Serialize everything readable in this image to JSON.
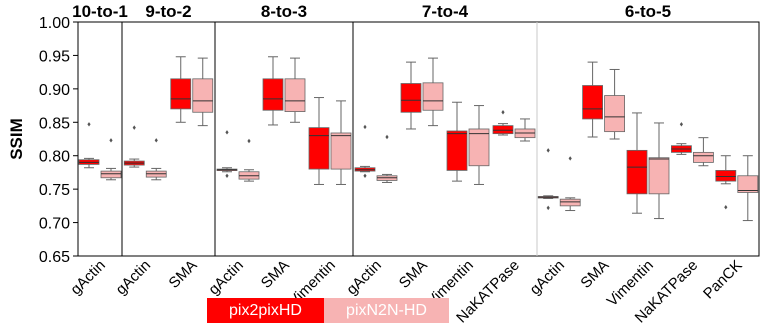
{
  "chart_data": {
    "type": "box",
    "ylabel": "SSIM",
    "ylim": [
      0.65,
      1.0
    ],
    "yticks": [
      "1.00",
      "0.95",
      "0.90",
      "0.85",
      "0.80",
      "0.75",
      "0.70",
      "0.65"
    ],
    "grid": false,
    "legend_position": "bottom-center",
    "colors": {
      "pix2pixHD": "#ff0000",
      "pixN2N-HD": "#f7b3b3"
    },
    "legend": [
      {
        "name": "pix2pixHD",
        "color": "#ff0000"
      },
      {
        "name": "pixN2N-HD",
        "color": "#f7b3b3"
      }
    ],
    "panels": [
      {
        "title": "10-to-1",
        "categories": [
          "gActin"
        ],
        "boxes": [
          {
            "category": "gActin",
            "series": "pix2pixHD",
            "min": 0.782,
            "q1": 0.787,
            "median": 0.79,
            "q3": 0.794,
            "max": 0.796,
            "outliers": [
              0.847
            ]
          },
          {
            "category": "gActin",
            "series": "pixN2N-HD",
            "min": 0.764,
            "q1": 0.767,
            "median": 0.773,
            "q3": 0.777,
            "max": 0.781,
            "outliers": [
              0.823
            ]
          }
        ]
      },
      {
        "title": "9-to-2",
        "categories": [
          "gActin",
          "SMA"
        ],
        "boxes": [
          {
            "category": "gActin",
            "series": "pix2pixHD",
            "min": 0.783,
            "q1": 0.786,
            "median": 0.789,
            "q3": 0.792,
            "max": 0.795,
            "outliers": [
              0.842
            ]
          },
          {
            "category": "gActin",
            "series": "pixN2N-HD",
            "min": 0.764,
            "q1": 0.768,
            "median": 0.773,
            "q3": 0.777,
            "max": 0.781,
            "outliers": [
              0.823
            ]
          },
          {
            "category": "SMA",
            "series": "pix2pixHD",
            "min": 0.85,
            "q1": 0.87,
            "median": 0.885,
            "q3": 0.915,
            "max": 0.948,
            "outliers": []
          },
          {
            "category": "SMA",
            "series": "pixN2N-HD",
            "min": 0.845,
            "q1": 0.865,
            "median": 0.882,
            "q3": 0.915,
            "max": 0.946,
            "outliers": []
          }
        ]
      },
      {
        "title": "8-to-3",
        "categories": [
          "gActin",
          "SMA",
          "Vimentin"
        ],
        "boxes": [
          {
            "category": "gActin",
            "series": "pix2pixHD",
            "min": 0.776,
            "q1": 0.778,
            "median": 0.779,
            "q3": 0.78,
            "max": 0.782,
            "outliers": [
              0.835,
              0.77
            ]
          },
          {
            "category": "gActin",
            "series": "pixN2N-HD",
            "min": 0.762,
            "q1": 0.765,
            "median": 0.77,
            "q3": 0.776,
            "max": 0.779,
            "outliers": [
              0.822
            ]
          },
          {
            "category": "SMA",
            "series": "pix2pixHD",
            "min": 0.846,
            "q1": 0.868,
            "median": 0.885,
            "q3": 0.915,
            "max": 0.948,
            "outliers": []
          },
          {
            "category": "SMA",
            "series": "pixN2N-HD",
            "min": 0.85,
            "q1": 0.866,
            "median": 0.882,
            "q3": 0.915,
            "max": 0.946,
            "outliers": []
          },
          {
            "category": "Vimentin",
            "series": "pix2pixHD",
            "min": 0.757,
            "q1": 0.78,
            "median": 0.83,
            "q3": 0.842,
            "max": 0.887,
            "outliers": []
          },
          {
            "category": "Vimentin",
            "series": "pixN2N-HD",
            "min": 0.757,
            "q1": 0.78,
            "median": 0.83,
            "q3": 0.834,
            "max": 0.882,
            "outliers": []
          }
        ]
      },
      {
        "title": "7-to-4",
        "categories": [
          "gActin",
          "SMA",
          "Vimentin",
          "NaKATPase"
        ],
        "boxes": [
          {
            "category": "gActin",
            "series": "pix2pixHD",
            "min": 0.776,
            "q1": 0.777,
            "median": 0.779,
            "q3": 0.782,
            "max": 0.784,
            "outliers": [
              0.843,
              0.77
            ]
          },
          {
            "category": "gActin",
            "series": "pixN2N-HD",
            "min": 0.76,
            "q1": 0.763,
            "median": 0.767,
            "q3": 0.77,
            "max": 0.772,
            "outliers": [
              0.828
            ]
          },
          {
            "category": "SMA",
            "series": "pix2pixHD",
            "min": 0.84,
            "q1": 0.865,
            "median": 0.883,
            "q3": 0.908,
            "max": 0.94,
            "outliers": []
          },
          {
            "category": "SMA",
            "series": "pixN2N-HD",
            "min": 0.845,
            "q1": 0.868,
            "median": 0.882,
            "q3": 0.909,
            "max": 0.946,
            "outliers": []
          },
          {
            "category": "Vimentin",
            "series": "pix2pixHD",
            "min": 0.762,
            "q1": 0.778,
            "median": 0.833,
            "q3": 0.837,
            "max": 0.88,
            "outliers": []
          },
          {
            "category": "Vimentin",
            "series": "pixN2N-HD",
            "min": 0.757,
            "q1": 0.785,
            "median": 0.833,
            "q3": 0.84,
            "max": 0.875,
            "outliers": []
          },
          {
            "category": "NaKATPase",
            "series": "pix2pixHD",
            "min": 0.831,
            "q1": 0.833,
            "median": 0.838,
            "q3": 0.845,
            "max": 0.848,
            "outliers": [
              0.865
            ]
          },
          {
            "category": "NaKATPase",
            "series": "pixN2N-HD",
            "min": 0.822,
            "q1": 0.827,
            "median": 0.834,
            "q3": 0.84,
            "max": 0.855,
            "outliers": []
          }
        ]
      },
      {
        "title": "6-to-5",
        "categories": [
          "gActin",
          "SMA",
          "Vimentin",
          "NaKATPase",
          "PanCK"
        ],
        "boxes": [
          {
            "category": "gActin",
            "series": "pix2pixHD",
            "min": 0.736,
            "q1": 0.737,
            "median": 0.738,
            "q3": 0.739,
            "max": 0.74,
            "outliers": [
              0.808,
              0.722
            ]
          },
          {
            "category": "gActin",
            "series": "pixN2N-HD",
            "min": 0.718,
            "q1": 0.725,
            "median": 0.731,
            "q3": 0.735,
            "max": 0.737,
            "outliers": [
              0.796
            ]
          },
          {
            "category": "SMA",
            "series": "pix2pixHD",
            "min": 0.828,
            "q1": 0.855,
            "median": 0.87,
            "q3": 0.905,
            "max": 0.94,
            "outliers": []
          },
          {
            "category": "SMA",
            "series": "pixN2N-HD",
            "min": 0.825,
            "q1": 0.836,
            "median": 0.858,
            "q3": 0.89,
            "max": 0.929,
            "outliers": []
          },
          {
            "category": "Vimentin",
            "series": "pix2pixHD",
            "min": 0.714,
            "q1": 0.743,
            "median": 0.783,
            "q3": 0.808,
            "max": 0.864,
            "outliers": []
          },
          {
            "category": "Vimentin",
            "series": "pixN2N-HD",
            "min": 0.706,
            "q1": 0.743,
            "median": 0.795,
            "q3": 0.797,
            "max": 0.849,
            "outliers": []
          },
          {
            "category": "NaKATPase",
            "series": "pix2pixHD",
            "min": 0.802,
            "q1": 0.805,
            "median": 0.81,
            "q3": 0.815,
            "max": 0.818,
            "outliers": [
              0.847
            ]
          },
          {
            "category": "NaKATPase",
            "series": "pixN2N-HD",
            "min": 0.785,
            "q1": 0.79,
            "median": 0.8,
            "q3": 0.805,
            "max": 0.827,
            "outliers": []
          },
          {
            "category": "PanCK",
            "series": "pix2pixHD",
            "min": 0.758,
            "q1": 0.762,
            "median": 0.769,
            "q3": 0.778,
            "max": 0.8,
            "outliers": [
              0.723
            ]
          },
          {
            "category": "PanCK",
            "series": "pixN2N-HD",
            "min": 0.703,
            "q1": 0.745,
            "median": 0.748,
            "q3": 0.77,
            "max": 0.8,
            "outliers": []
          }
        ]
      }
    ]
  }
}
